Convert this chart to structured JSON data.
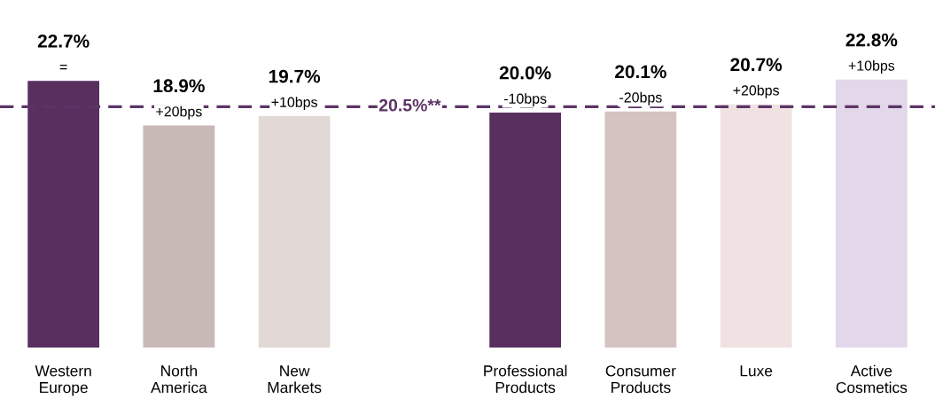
{
  "chart_data": {
    "type": "bar",
    "categories": [
      "Western\nEurope",
      "North\nAmerica",
      "New\nMarkets",
      null,
      "Professional\nProducts",
      "Consumer\nProducts",
      "Luxe",
      "Active\nCosmetics"
    ],
    "values": [
      22.7,
      18.9,
      19.7,
      null,
      20.0,
      20.1,
      20.7,
      22.8
    ],
    "colors": [
      "#582f5f",
      "#c8b8b6",
      "#e2d8d6",
      null,
      "#582f5f",
      "#d5c3c1",
      "#f0e2e2",
      "#e3d7ea"
    ],
    "value_labels": [
      "22.7%",
      "18.9%",
      "19.7%",
      null,
      "20.0%",
      "20.1%",
      "20.7%",
      "22.8%"
    ],
    "annotations": [
      {
        "text": "=",
        "x": "Western\nEurope",
        "y": 22.7
      },
      {
        "text": "+20bps",
        "x": "North\nAmerica",
        "y": 18.9
      },
      {
        "text": "+10bps",
        "x": "New\nMarkets",
        "y": 19.7
      },
      {
        "text": "-10bps",
        "x": "Professional\nProducts",
        "y": 20.0
      },
      {
        "text": "-20bps",
        "x": "Consumer\nProducts",
        "y": 20.1
      },
      {
        "text": "+20bps",
        "x": "Luxe",
        "y": 20.7
      },
      {
        "text": "+10bps",
        "x": "Active\nCosmetics",
        "y": 22.8
      }
    ],
    "ref_lines": [
      {
        "axis": "y",
        "value": 20.5,
        "label": "20.5%**",
        "color": "#5c3566",
        "line_style": "dashed"
      }
    ],
    "tick_labels": "x",
    "grid": false,
    "legend": false
  }
}
